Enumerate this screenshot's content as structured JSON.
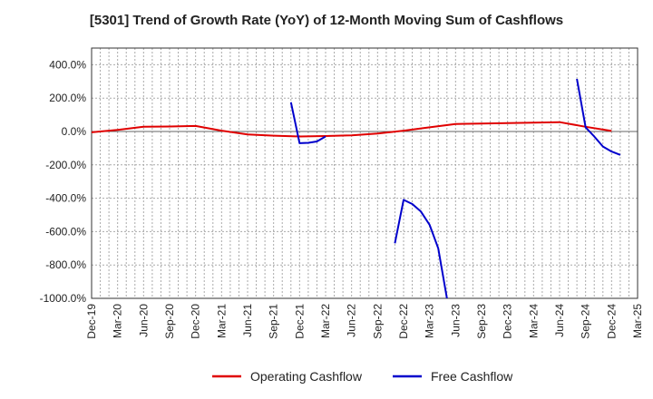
{
  "chart_data": {
    "type": "line",
    "title": "[5301]  Trend of Growth Rate (YoY) of 12-Month Moving Sum of Cashflows",
    "xlabel": "",
    "ylabel": "",
    "ylim": [
      -1000,
      500
    ],
    "y_ticks": [
      400,
      200,
      0,
      -200,
      -400,
      -600,
      -800,
      -1000
    ],
    "y_tick_labels": [
      "400.0%",
      "200.0%",
      "0.0%",
      "-200.0%",
      "-400.0%",
      "-600.0%",
      "-800.0%",
      "-1000.0%"
    ],
    "x_range": [
      "2019-12",
      "2025-03"
    ],
    "x_tick_labels": [
      "Dec-19",
      "Mar-20",
      "Jun-20",
      "Sep-20",
      "Dec-20",
      "Mar-21",
      "Jun-21",
      "Sep-21",
      "Dec-21",
      "Mar-22",
      "Jun-22",
      "Sep-22",
      "Dec-22",
      "Mar-23",
      "Jun-23",
      "Sep-23",
      "Dec-23",
      "Mar-24",
      "Jun-24",
      "Sep-24",
      "Dec-24",
      "Mar-25"
    ],
    "grid": true,
    "legend_position": "bottom-center",
    "series": [
      {
        "name": "Operating Cashflow",
        "color": "#e00000",
        "points": [
          [
            "2019-12",
            -5
          ],
          [
            "2020-03",
            10
          ],
          [
            "2020-06",
            28
          ],
          [
            "2020-09",
            30
          ],
          [
            "2020-12",
            33
          ],
          [
            "2021-03",
            5
          ],
          [
            "2021-06",
            -18
          ],
          [
            "2021-09",
            -25
          ],
          [
            "2021-12",
            -30
          ],
          [
            "2022-03",
            -27
          ],
          [
            "2022-06",
            -23
          ],
          [
            "2022-09",
            -12
          ],
          [
            "2022-12",
            5
          ],
          [
            "2023-03",
            25
          ],
          [
            "2023-06",
            45
          ],
          [
            "2023-09",
            48
          ],
          [
            "2023-12",
            50
          ],
          [
            "2024-03",
            53
          ],
          [
            "2024-06",
            56
          ],
          [
            "2024-09",
            28
          ],
          [
            "2024-12",
            3
          ]
        ]
      },
      {
        "name": "Free Cashflow",
        "color": "#0000cc",
        "points": [
          [
            "2021-11",
            175
          ],
          [
            "2021-12",
            -70
          ],
          [
            "2022-01",
            -68
          ],
          [
            "2022-02",
            -60
          ],
          [
            "2022-03",
            -30
          ],
          [
            "2022-11",
            null
          ],
          [
            "2022-11",
            -670
          ],
          [
            "2022-12",
            -410
          ],
          [
            "2023-01",
            -435
          ],
          [
            "2023-02",
            -480
          ],
          [
            "2023-03",
            -560
          ],
          [
            "2023-04",
            -700
          ],
          [
            "2023-05",
            -1000
          ],
          [
            "2024-07",
            null
          ],
          [
            "2024-08",
            315
          ],
          [
            "2024-09",
            25
          ],
          [
            "2024-10",
            -30
          ],
          [
            "2024-11",
            -90
          ],
          [
            "2024-12",
            -120
          ],
          [
            "2025-01",
            -140
          ]
        ]
      }
    ]
  }
}
